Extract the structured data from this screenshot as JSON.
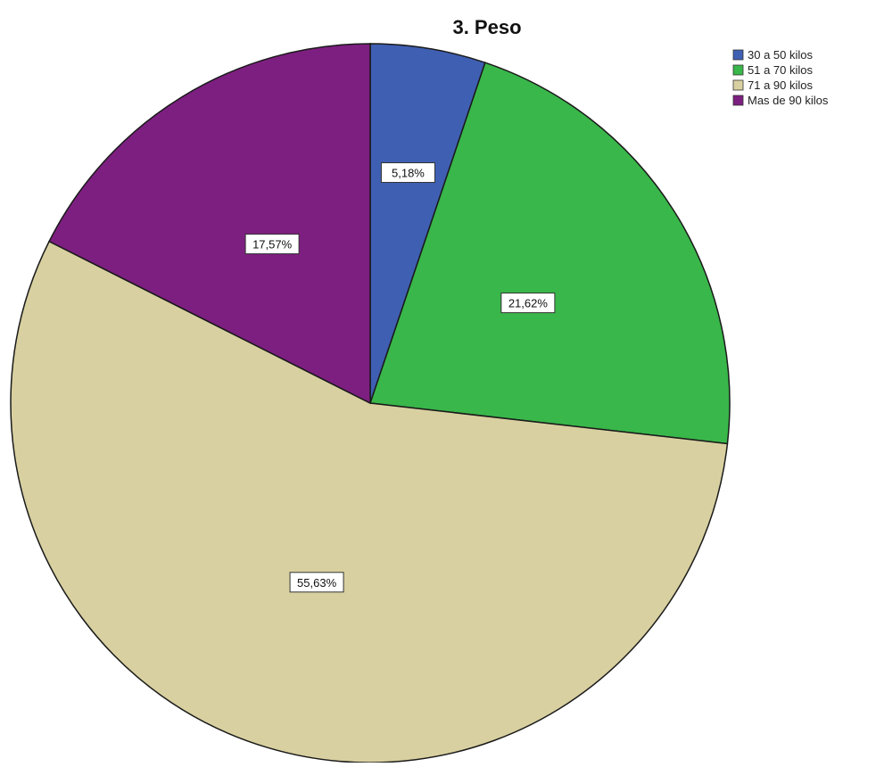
{
  "chart_data": {
    "type": "pie",
    "title": "3. Peso",
    "categories": [
      "30 a 50 kilos",
      "51 a 70 kilos",
      "71 a 90 kilos",
      "Mas de 90 kilos"
    ],
    "values": [
      5.18,
      21.62,
      55.63,
      17.57
    ],
    "data_labels": [
      "5,18%",
      "21,62%",
      "55,63%",
      "17,57%"
    ],
    "colors": [
      "#3f5fb3",
      "#39b74a",
      "#d8d0a0",
      "#7d1f80"
    ],
    "start_angle": "12 o'clock",
    "direction": "clockwise",
    "legend": {
      "position": "top-right",
      "entries": [
        "30 a 50 kilos",
        "51 a 70 kilos",
        "71 a 90 kilos",
        "Mas de 90 kilos"
      ]
    }
  }
}
